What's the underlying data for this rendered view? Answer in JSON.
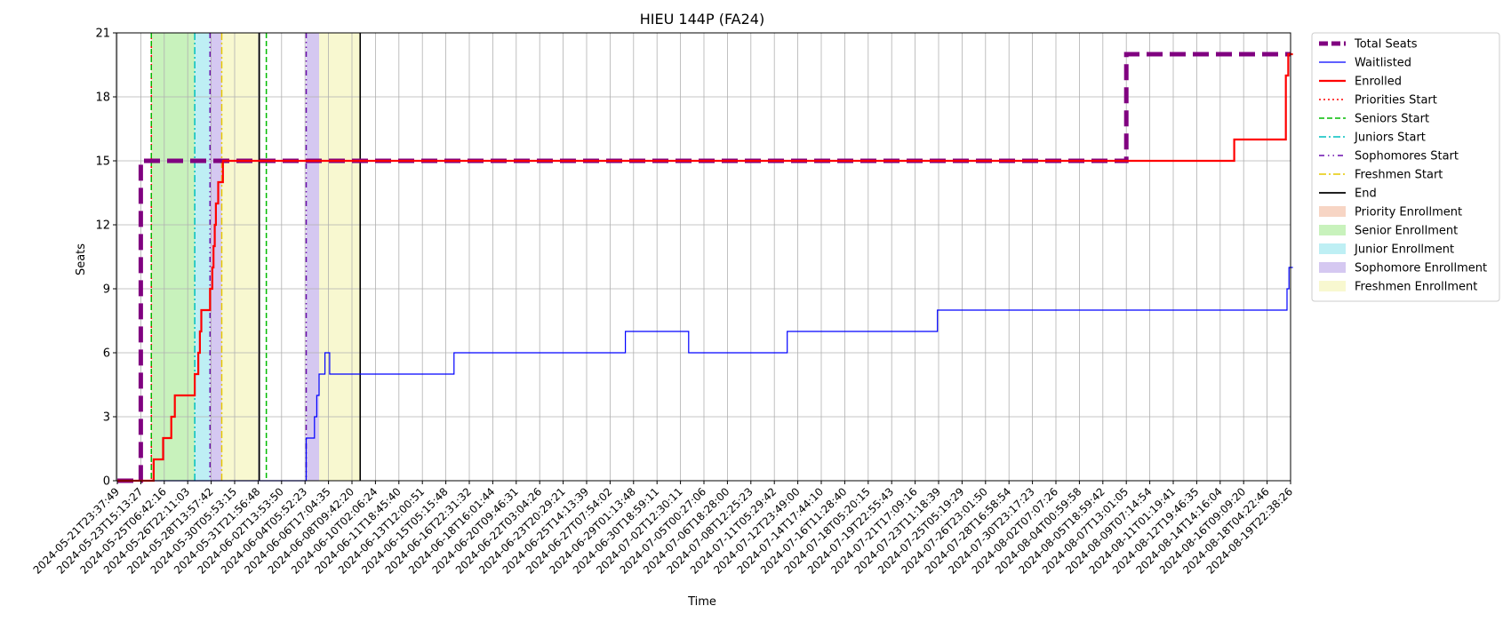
{
  "chart_data": {
    "type": "line",
    "title": "HIEU 144P (FA24)",
    "xlabel": "Time",
    "ylabel": "Seats",
    "ylim": [
      0,
      21
    ],
    "yticks": [
      0,
      3,
      6,
      9,
      12,
      15,
      18,
      21
    ],
    "grid": true,
    "legend_position": "outside-right",
    "x_tick_labels": [
      "2024-05-21T23:37:49",
      "2024-05-23T15:13:27",
      "2024-05-25T06:42:16",
      "2024-05-26T22:11:03",
      "2024-05-28T13:57:42",
      "2024-05-30T05:53:15",
      "2024-05-31T21:56:48",
      "2024-06-02T13:53:50",
      "2024-06-04T05:52:23",
      "2024-06-06T17:04:35",
      "2024-06-08T09:42:20",
      "2024-06-10T02:06:24",
      "2024-06-11T18:45:40",
      "2024-06-13T12:00:51",
      "2024-06-15T05:15:48",
      "2024-06-16T22:31:32",
      "2024-06-18T16:01:44",
      "2024-06-20T09:46:31",
      "2024-06-22T03:04:26",
      "2024-06-23T20:29:21",
      "2024-06-25T14:13:39",
      "2024-06-27T07:54:02",
      "2024-06-29T01:13:48",
      "2024-06-30T18:59:11",
      "2024-07-02T12:30:11",
      "2024-07-05T00:27:06",
      "2024-07-06T18:28:00",
      "2024-07-08T12:25:23",
      "2024-07-11T05:29:42",
      "2024-07-12T23:49:00",
      "2024-07-14T17:44:10",
      "2024-07-16T11:28:40",
      "2024-07-18T05:20:15",
      "2024-07-19T22:55:43",
      "2024-07-21T17:09:16",
      "2024-07-23T11:18:39",
      "2024-07-25T05:19:29",
      "2024-07-26T23:01:50",
      "2024-07-28T16:58:54",
      "2024-07-30T23:17:23",
      "2024-08-02T07:07:26",
      "2024-08-04T00:59:58",
      "2024-08-05T18:59:42",
      "2024-08-07T13:01:05",
      "2024-08-09T07:14:54",
      "2024-08-11T01:19:41",
      "2024-08-12T19:46:35",
      "2024-08-14T14:16:04",
      "2024-08-16T09:09:20",
      "2024-08-18T04:22:46",
      "2024-08-19T22:38:26"
    ],
    "series": [
      {
        "name": "Total Seats",
        "color": "#800080",
        "style": "dashed-thick",
        "points": [
          [
            0,
            0
          ],
          [
            1,
            0
          ],
          [
            1,
            15
          ],
          [
            43,
            15
          ],
          [
            43,
            20
          ],
          [
            50,
            20
          ]
        ]
      },
      {
        "name": "Waitlisted",
        "color": "#0000ff",
        "style": "solid-thin",
        "points": [
          [
            0,
            0
          ],
          [
            8.05,
            0
          ],
          [
            8.05,
            2
          ],
          [
            8.4,
            2
          ],
          [
            8.4,
            3
          ],
          [
            8.5,
            3
          ],
          [
            8.5,
            4
          ],
          [
            8.6,
            4
          ],
          [
            8.6,
            5
          ],
          [
            8.85,
            5
          ],
          [
            8.85,
            6
          ],
          [
            9.05,
            6
          ],
          [
            9.05,
            5
          ],
          [
            14.35,
            5
          ],
          [
            14.35,
            6
          ],
          [
            21.65,
            6
          ],
          [
            21.65,
            7
          ],
          [
            24.35,
            7
          ],
          [
            24.35,
            6
          ],
          [
            28.55,
            6
          ],
          [
            28.55,
            7
          ],
          [
            34.95,
            7
          ],
          [
            34.95,
            8
          ],
          [
            49.85,
            8
          ],
          [
            49.85,
            9
          ],
          [
            49.93,
            9
          ],
          [
            49.93,
            10
          ],
          [
            50.1,
            10
          ]
        ]
      },
      {
        "name": "Enrolled",
        "color": "#ff0000",
        "style": "solid",
        "points": [
          [
            0,
            0
          ],
          [
            1.55,
            0
          ],
          [
            1.55,
            1
          ],
          [
            1.95,
            1
          ],
          [
            1.95,
            2
          ],
          [
            2.3,
            2
          ],
          [
            2.3,
            3
          ],
          [
            2.45,
            3
          ],
          [
            2.45,
            4
          ],
          [
            3.3,
            4
          ],
          [
            3.3,
            5
          ],
          [
            3.45,
            5
          ],
          [
            3.45,
            6
          ],
          [
            3.52,
            6
          ],
          [
            3.52,
            7
          ],
          [
            3.58,
            7
          ],
          [
            3.58,
            8
          ],
          [
            3.95,
            8
          ],
          [
            3.95,
            9
          ],
          [
            4.05,
            9
          ],
          [
            4.05,
            10
          ],
          [
            4.1,
            10
          ],
          [
            4.1,
            11
          ],
          [
            4.15,
            11
          ],
          [
            4.15,
            12
          ],
          [
            4.2,
            12
          ],
          [
            4.2,
            13
          ],
          [
            4.3,
            13
          ],
          [
            4.3,
            14
          ],
          [
            4.5,
            14
          ],
          [
            4.5,
            15
          ],
          [
            47.6,
            15
          ],
          [
            47.6,
            16
          ],
          [
            49.8,
            16
          ],
          [
            49.8,
            19
          ],
          [
            49.9,
            19
          ],
          [
            49.9,
            20
          ],
          [
            50.1,
            20
          ]
        ]
      }
    ],
    "start_lines": [
      {
        "name": "Priorities Start",
        "color": "#ff0000",
        "style": "dotted",
        "x": [
          1.45
        ]
      },
      {
        "name": "Seniors Start",
        "color": "#00bb00",
        "style": "dashed",
        "x": [
          1.45,
          6.35
        ]
      },
      {
        "name": "Juniors Start",
        "color": "#00bfbf",
        "style": "dashdot",
        "x": [
          3.3
        ]
      },
      {
        "name": "Sophomores Start",
        "color": "#6a0dad",
        "style": "dashdotdot",
        "x": [
          3.95,
          8.05
        ]
      },
      {
        "name": "Freshmen Start",
        "color": "#e6c800",
        "style": "dashdot",
        "x": [
          4.45
        ]
      },
      {
        "name": "End",
        "color": "#000000",
        "style": "solid",
        "x": [
          6.05,
          10.35
        ]
      }
    ],
    "enrollment_periods": [
      {
        "name": "Priority Enrollment",
        "color": "#f4c7b0",
        "ranges": [
          [
            1.45,
            1.5
          ]
        ]
      },
      {
        "name": "Senior Enrollment",
        "color": "#b5eda5",
        "ranges": [
          [
            1.5,
            3.3
          ]
        ]
      },
      {
        "name": "Junior Enrollment",
        "color": "#a8eaf0",
        "ranges": [
          [
            3.3,
            3.95
          ]
        ]
      },
      {
        "name": "Sophomore Enrollment",
        "color": "#c7b6ec",
        "ranges": [
          [
            3.95,
            4.45
          ],
          [
            8.05,
            8.6
          ]
        ]
      },
      {
        "name": "Freshmen Enrollment",
        "color": "#f5f5c0",
        "ranges": [
          [
            4.45,
            6.05
          ],
          [
            8.6,
            10.35
          ]
        ]
      }
    ]
  }
}
